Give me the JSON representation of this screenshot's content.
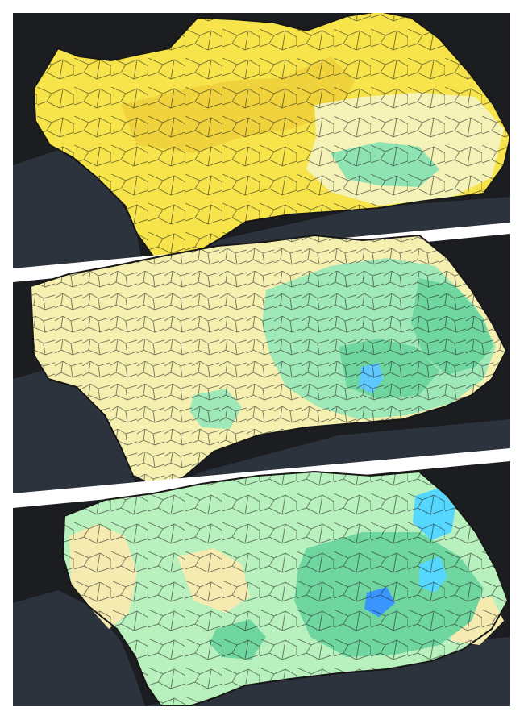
{
  "panels": [
    {
      "id": "top",
      "theme": "yellow",
      "palette": {
        "land_main": "#f7e44a",
        "land_dark": "#edcf3b",
        "land_light": "#f4f2b6",
        "green": "#8fe3b3",
        "blue": "#63b8ff"
      }
    },
    {
      "id": "middle",
      "theme": "pale",
      "palette": {
        "land_main": "#f5f0b0",
        "green": "#9fe8b7",
        "green_dark": "#6fd6a0",
        "blue": "#5ec8ff"
      }
    },
    {
      "id": "bottom",
      "theme": "green",
      "palette": {
        "land_main": "#b8f1bd",
        "land_light": "#f5ebb0",
        "green_dark": "#6fd6a0",
        "blue": "#55d7ff",
        "blue_dark": "#3a95ff"
      }
    }
  ],
  "colors": {
    "sea": "#2c333d",
    "background": "#1b1d20",
    "border": "#171717",
    "separator": "#ffffff"
  }
}
